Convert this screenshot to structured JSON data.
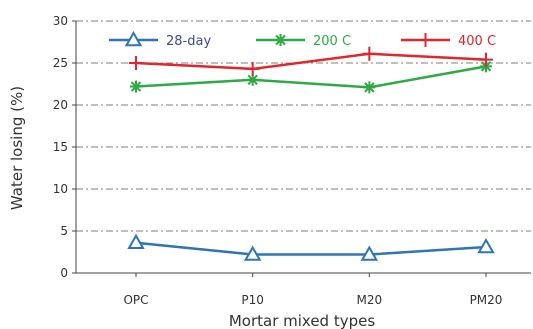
{
  "chart_data": {
    "type": "line",
    "title": "",
    "xlabel": "Mortar mixed types",
    "ylabel": "Water losing (%)",
    "categories": [
      "OPC",
      "P10",
      "M20",
      "PM20"
    ],
    "ylim": [
      0,
      30
    ],
    "yticks": [
      0,
      5,
      10,
      15,
      20,
      25,
      30
    ],
    "grid": "horizontal dash-dot",
    "legend_position": "top",
    "series": [
      {
        "name": "28-day",
        "values": [
          3.6,
          2.2,
          2.2,
          3.1
        ],
        "color": "#2e75b6",
        "label_color": "#3c4b8c",
        "marker": "triangle"
      },
      {
        "name": "200 C",
        "values": [
          22.2,
          23.0,
          22.1,
          24.6
        ],
        "color": "#2eaa44",
        "label_color": "#2eaa44",
        "marker": "asterisk"
      },
      {
        "name": "400 C",
        "values": [
          25.0,
          24.3,
          26.1,
          25.4
        ],
        "color": "#e0262e",
        "label_color": "#e0262e",
        "marker": "plus"
      }
    ]
  }
}
